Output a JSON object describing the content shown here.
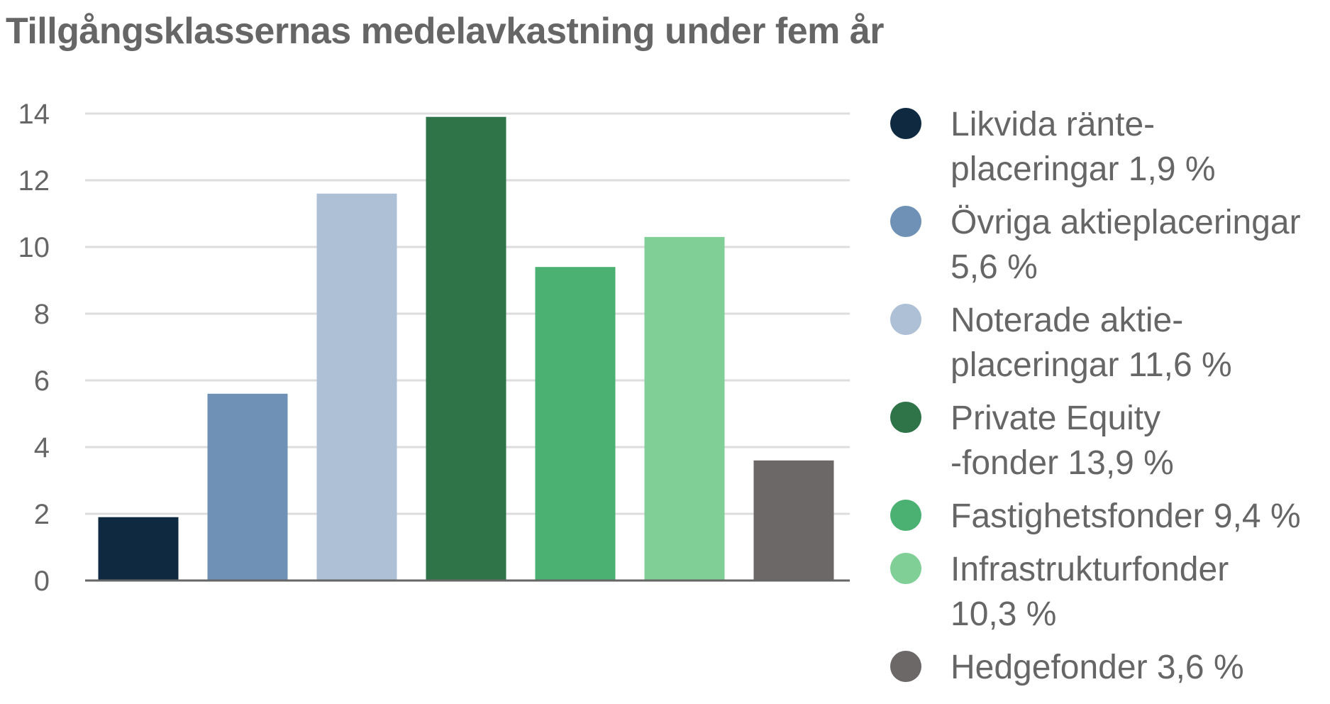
{
  "title": "Tillgångsklassernas medelavkastning under fem år",
  "chart_data": {
    "type": "bar",
    "title": "Tillgångsklassernas medelavkastning under fem år",
    "xlabel": "",
    "ylabel": "",
    "ylim": [
      0,
      14
    ],
    "yticks": [
      "0",
      "2",
      "4",
      "6",
      "8",
      "10",
      "12",
      "14"
    ],
    "grid": true,
    "legend_position": "right",
    "categories": [
      "Likvida ränteplaceringar",
      "Övriga aktieplaceringar",
      "Noterade aktieplaceringar",
      "Private Equity-fonder",
      "Fastighetsfonder",
      "Infrastrukturfonder",
      "Hedgefonder"
    ],
    "values": [
      1.9,
      5.6,
      11.6,
      13.9,
      9.4,
      10.3,
      3.6
    ],
    "colors": [
      "#0f2a40",
      "#6f91b6",
      "#aec0d6",
      "#2f7349",
      "#4bb173",
      "#80cf97",
      "#6b6867"
    ]
  },
  "legend": [
    {
      "label": "Likvida ränte-\nplaceringar 1,9 %",
      "color": "#0f2a40"
    },
    {
      "label": "Övriga aktieplaceringar\n5,6 %",
      "color": "#6f91b6"
    },
    {
      "label": "Noterade aktie-\nplaceringar 11,6 %",
      "color": "#aec0d6"
    },
    {
      "label": "Private Equity\n-fonder 13,9 %",
      "color": "#2f7349"
    },
    {
      "label": "Fastighetsfonder 9,4 %",
      "color": "#4bb173"
    },
    {
      "label": "Infrastrukturfonder\n10,3 %",
      "color": "#80cf97"
    },
    {
      "label": "Hedgefonder 3,6 %",
      "color": "#6b6867"
    }
  ]
}
